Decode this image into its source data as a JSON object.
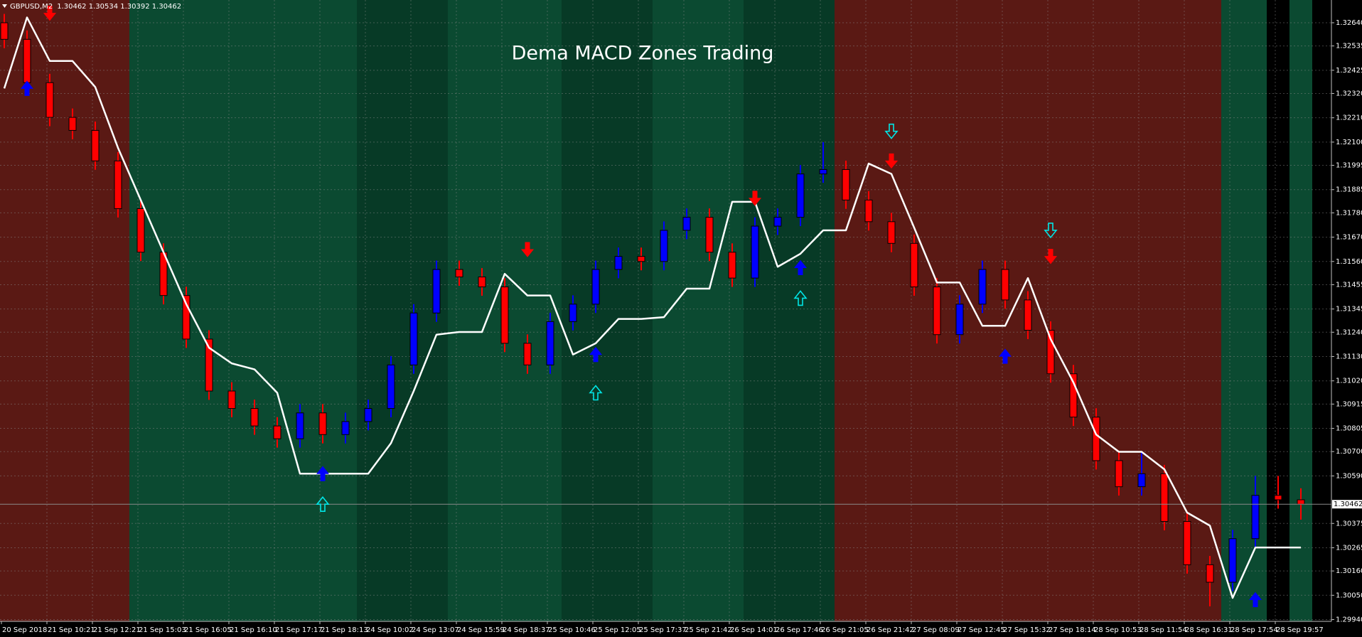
{
  "chart_data": {
    "type": "candlestick",
    "title": "Dema MACD Zones Trading",
    "header": {
      "symbol": "GBPUSD,M2",
      "quote": "1.30462 1.30534 1.30392 1.30462"
    },
    "categories": [
      "20 Sep 2018",
      null,
      "21 Sep 10:21",
      null,
      "21 Sep 12:21",
      null,
      "21 Sep 15:03",
      null,
      "21 Sep 16:05",
      null,
      "21 Sep 16:10",
      null,
      "21 Sep 17:17",
      null,
      "21 Sep 18:13",
      null,
      "24 Sep 10:02",
      null,
      "24 Sep 13:07",
      null,
      "24 Sep 15:59",
      null,
      "24 Sep 18:37",
      null,
      "25 Sep 10:46",
      null,
      "25 Sep 12:05",
      null,
      "25 Sep 17:37",
      null,
      "25 Sep 21:42",
      null,
      "26 Sep 14:01",
      null,
      "26 Sep 17:46",
      null,
      "26 Sep 21:05",
      null,
      "26 Sep 21:42",
      null,
      "27 Sep 08:09",
      null,
      "27 Sep 12:45",
      null,
      "27 Sep 15:32",
      null,
      "27 Sep 18:14",
      null,
      "28 Sep 10:53",
      null,
      "28 Sep 11:54",
      null,
      "28 Sep 16:31",
      null,
      "28 Sep 17:54",
      null,
      "28 Sep 19:57",
      null
    ],
    "open": [
      1.3264,
      1.32565,
      1.32369,
      1.32212,
      1.32153,
      1.32015,
      1.31799,
      1.31602,
      1.31406,
      1.31209,
      1.30974,
      1.30895,
      1.30816,
      1.30758,
      1.30875,
      1.30777,
      1.30836,
      1.30895,
      1.31092,
      1.31327,
      1.31524,
      1.3149,
      1.31445,
      1.3119,
      1.31092,
      1.31288,
      1.31367,
      1.31524,
      1.31583,
      1.3156,
      1.31701,
      1.3176,
      1.31602,
      1.31485,
      1.3172,
      1.3176,
      1.31956,
      1.31976,
      1.31838,
      1.3174,
      1.31642,
      1.31445,
      1.31229,
      1.31367,
      1.31524,
      1.31386,
      1.31249,
      1.31052,
      1.30856,
      1.30659,
      1.30541,
      1.306,
      1.30384,
      1.30188,
      1.30109,
      1.30306,
      1.30502,
      1.30482
    ],
    "high": [
      1.3268,
      1.32605,
      1.32409,
      1.32252,
      1.32193,
      1.32055,
      1.31839,
      1.31642,
      1.31446,
      1.31249,
      1.31014,
      1.30935,
      1.30856,
      1.30915,
      1.30915,
      1.30876,
      1.30935,
      1.31132,
      1.31367,
      1.31564,
      1.31564,
      1.3153,
      1.31485,
      1.3123,
      1.31328,
      1.31407,
      1.31564,
      1.31623,
      1.31623,
      1.31741,
      1.318,
      1.318,
      1.31642,
      1.3176,
      1.318,
      1.31996,
      1.321,
      1.32016,
      1.31878,
      1.3178,
      1.31682,
      1.31485,
      1.31407,
      1.31564,
      1.31564,
      1.31426,
      1.31289,
      1.31092,
      1.30896,
      1.30699,
      1.307,
      1.3064,
      1.30424,
      1.30228,
      1.30346,
      1.3059,
      1.3059,
      1.30534
    ],
    "low": [
      1.32525,
      1.32329,
      1.32172,
      1.32113,
      1.31975,
      1.31759,
      1.31562,
      1.31366,
      1.31169,
      1.30934,
      1.30855,
      1.30776,
      1.30718,
      1.30718,
      1.30737,
      1.30737,
      1.30796,
      1.30855,
      1.31052,
      1.31287,
      1.3145,
      1.31405,
      1.3115,
      1.31052,
      1.31052,
      1.31248,
      1.31327,
      1.31484,
      1.3152,
      1.3152,
      1.31661,
      1.31562,
      1.31445,
      1.31445,
      1.3168,
      1.3172,
      1.31916,
      1.31798,
      1.317,
      1.31602,
      1.31405,
      1.31189,
      1.31189,
      1.31327,
      1.31346,
      1.31209,
      1.31012,
      1.30816,
      1.30619,
      1.30501,
      1.30501,
      1.30344,
      1.30148,
      1.3,
      1.30069,
      1.30266,
      1.30442,
      1.30392
    ],
    "close": [
      1.32565,
      1.32369,
      1.32212,
      1.32153,
      1.32015,
      1.31799,
      1.31602,
      1.31406,
      1.31209,
      1.30974,
      1.30895,
      1.30816,
      1.30758,
      1.30875,
      1.30777,
      1.30836,
      1.30895,
      1.31092,
      1.31327,
      1.31524,
      1.3149,
      1.31445,
      1.3119,
      1.31092,
      1.31288,
      1.31367,
      1.31524,
      1.31583,
      1.3156,
      1.31701,
      1.3176,
      1.31602,
      1.31485,
      1.3172,
      1.3176,
      1.31956,
      1.31976,
      1.31838,
      1.3174,
      1.31642,
      1.31445,
      1.31229,
      1.31367,
      1.31524,
      1.31386,
      1.31249,
      1.31052,
      1.30856,
      1.30659,
      1.30541,
      1.306,
      1.30384,
      1.30188,
      1.30109,
      1.30306,
      1.30502,
      1.30482,
      1.30462
    ],
    "up_color": "#0000ff",
    "down_color": "#ff0000",
    "zone_colors": [
      "#5a1914",
      "#5a1914",
      "#5a1914",
      "#5a1914",
      "#5a1914",
      "#5a1914",
      "#0b4a31",
      "#0b4a31",
      "#0b4a31",
      "#0b4a31",
      "#0b4a31",
      "#0b4a31",
      "#0b4a31",
      "#0b4a31",
      "#0b4a31",
      "#0b4a31",
      "#073a26",
      "#073a26",
      "#073a26",
      "#073a26",
      "#0b4a31",
      "#0b4a31",
      "#0b4a31",
      "#0b4a31",
      "#0b4a31",
      "#073a26",
      "#073a26",
      "#073a26",
      "#073a26",
      "#0b4a31",
      "#0b4a31",
      "#0b4a31",
      "#0b4a31",
      "#073a26",
      "#073a26",
      "#073a26",
      "#073a26",
      "#5a1914",
      "#5a1914",
      "#5a1914",
      "#5a1914",
      "#5a1914",
      "#5a1914",
      "#5a1914",
      "#5a1914",
      "#5a1914",
      "#5a1914",
      "#5a1914",
      "#5a1914",
      "#5a1914",
      "#5a1914",
      "#5a1914",
      "#5a1914",
      "#5a1914",
      "#0b4a31",
      "#0b4a31",
      "#000000",
      "#0b4a31"
    ],
    "stop_line": {
      "color": "#ffffff",
      "values": [
        1.32343,
        1.32664,
        1.32467,
        1.32467,
        1.32349,
        1.32074,
        1.31838,
        1.31602,
        1.31367,
        1.3117,
        1.31099,
        1.31072,
        1.30966,
        1.306,
        1.306,
        1.306,
        1.306,
        1.30738,
        1.30974,
        1.31229,
        1.31241,
        1.31241,
        1.31504,
        1.31406,
        1.31406,
        1.31139,
        1.3119,
        1.313,
        1.313,
        1.31308,
        1.31437,
        1.31437,
        1.3183,
        1.3183,
        1.31536,
        1.31595,
        1.31701,
        1.31701,
        1.32003,
        1.31956,
        1.31713,
        1.31465,
        1.31465,
        1.31269,
        1.31269,
        1.31485,
        1.31209,
        1.31013,
        1.30777,
        1.30699,
        1.30699,
        1.3062,
        1.30424,
        1.30365,
        1.30038,
        1.30266,
        1.30266,
        1.30266
      ]
    },
    "sell_arrows": {
      "color": "#ff0000",
      "values": [
        null,
        null,
        1.32683,
        null,
        null,
        null,
        null,
        null,
        null,
        null,
        null,
        null,
        null,
        null,
        null,
        null,
        null,
        null,
        null,
        null,
        null,
        null,
        null,
        1.31614,
        null,
        null,
        null,
        null,
        null,
        null,
        null,
        null,
        null,
        1.31846,
        null,
        null,
        null,
        null,
        null,
        1.32015,
        null,
        null,
        null,
        null,
        null,
        null,
        1.31583,
        null,
        null,
        null,
        null,
        null,
        null,
        null,
        null,
        null,
        null,
        null
      ]
    },
    "buy_arrows": {
      "color": "#0000ff",
      "values": [
        null,
        1.32343,
        null,
        null,
        null,
        null,
        null,
        null,
        null,
        null,
        null,
        null,
        null,
        null,
        1.306,
        null,
        null,
        null,
        null,
        null,
        null,
        null,
        null,
        null,
        null,
        null,
        1.31139,
        null,
        null,
        null,
        null,
        null,
        null,
        null,
        null,
        1.31532,
        null,
        null,
        null,
        null,
        null,
        null,
        null,
        null,
        1.31131,
        null,
        null,
        null,
        null,
        null,
        null,
        null,
        null,
        null,
        null,
        1.3003,
        null,
        null
      ]
    },
    "buy_alerts": {
      "color": "#00e5e5",
      "values": [
        null,
        null,
        null,
        null,
        null,
        null,
        null,
        null,
        null,
        null,
        null,
        null,
        null,
        null,
        1.30462,
        null,
        null,
        null,
        null,
        null,
        null,
        null,
        null,
        null,
        null,
        null,
        1.30966,
        null,
        null,
        null,
        null,
        null,
        null,
        null,
        null,
        1.31394,
        null,
        null,
        null,
        null,
        null,
        null,
        null,
        null,
        null,
        null,
        null,
        null,
        null,
        null,
        null,
        null,
        null,
        null,
        null,
        null,
        null,
        null
      ]
    },
    "sell_alerts": {
      "color": "#00e5e5",
      "values": [
        null,
        null,
        null,
        null,
        null,
        null,
        null,
        null,
        null,
        null,
        null,
        null,
        null,
        null,
        null,
        null,
        null,
        null,
        null,
        null,
        null,
        null,
        null,
        null,
        null,
        null,
        null,
        null,
        null,
        null,
        null,
        null,
        null,
        null,
        null,
        null,
        null,
        null,
        null,
        1.32149,
        null,
        null,
        null,
        null,
        null,
        null,
        1.31701,
        null,
        null,
        null,
        null,
        null,
        null,
        null,
        null,
        null,
        null,
        null
      ]
    },
    "current_price": 1.30462,
    "ylim": [
      1.29932,
      1.3273
    ],
    "yticks": [
      {
        "value": 1.3264,
        "label": "1.32640"
      },
      1.32535,
      1.32425,
      {
        "value": 1.3232,
        "label": "1.32320"
      },
      {
        "value": 1.3221,
        "label": "1.32210"
      },
      {
        "value": 1.321,
        "label": "1.32100"
      },
      1.31995,
      1.31885,
      {
        "value": 1.3178,
        "label": "1.31780"
      },
      {
        "value": 1.3167,
        "label": "1.31670"
      },
      {
        "value": 1.3156,
        "label": "1.31560"
      },
      1.31455,
      1.31345,
      {
        "value": 1.3124,
        "label": "1.31240"
      },
      {
        "value": 1.3113,
        "label": "1.31130"
      },
      {
        "value": 1.3102,
        "label": "1.31020"
      },
      1.30915,
      1.30805,
      {
        "value": 1.307,
        "label": "1.30700"
      },
      {
        "value": 1.3059,
        "label": "1.30590"
      },
      1.30375,
      1.30265,
      {
        "value": 1.3016,
        "label": "1.30160"
      },
      {
        "value": 1.3005,
        "label": "1.30050"
      },
      {
        "value": 1.2994,
        "label": "1.29940"
      }
    ],
    "grid": true
  }
}
